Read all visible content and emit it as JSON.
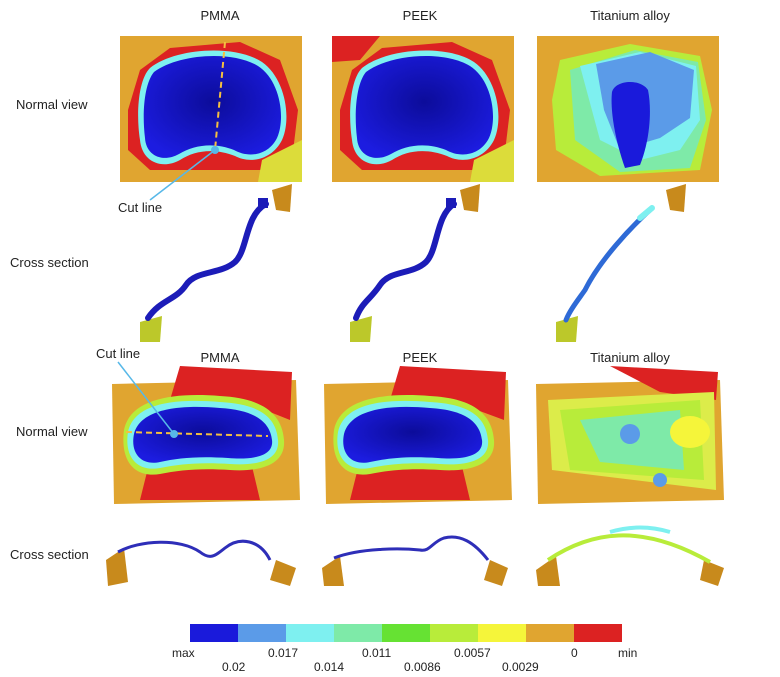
{
  "columns": {
    "top": [
      "PMMA",
      "PEEK",
      "Titanium alloy"
    ],
    "bottom": [
      "PMMA",
      "PEEK",
      "Titanium alloy"
    ]
  },
  "rows": {
    "top_normal": "Normal view",
    "top_cross": "Cross section",
    "bottom_normal": "Normal view",
    "bottom_cross": "Cross section"
  },
  "annotations": {
    "cut_line_top": "Cut line",
    "cut_line_bottom": "Cut line"
  },
  "colorbar": {
    "colors": [
      "#1a1adb",
      "#5b9be8",
      "#7ef0f0",
      "#7eeaa8",
      "#66e233",
      "#b8ec3a",
      "#f5f53a",
      "#e0a530",
      "#dc2222"
    ],
    "end_labels": [
      "max",
      "min"
    ],
    "values": [
      "0.02",
      "0.017",
      "0.014",
      "0.011",
      "0.0086",
      "0.0057",
      "0.0029",
      "0"
    ]
  }
}
